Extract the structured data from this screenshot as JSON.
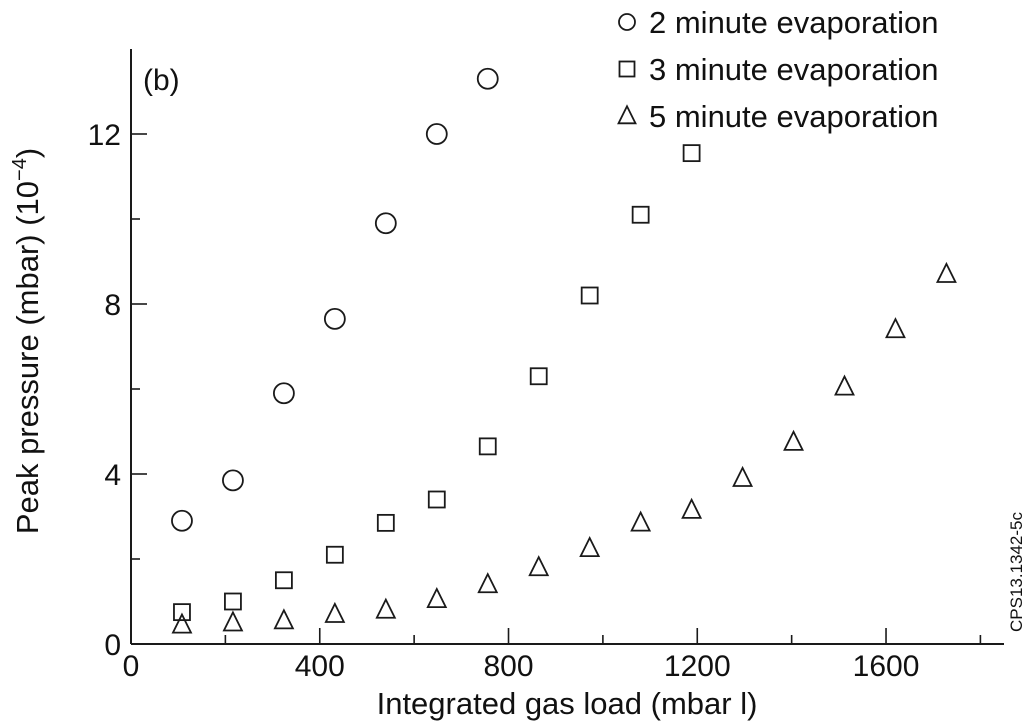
{
  "chart_data": {
    "type": "scatter",
    "panel_label": "(b)",
    "xlabel": "Integrated gas load (mbar l)",
    "ylabel_main": "Peak pressure (mbar) (10",
    "ylabel_sup": "−4",
    "ylabel_close": ")",
    "xlim": [
      0,
      1850
    ],
    "ylim": [
      0,
      14
    ],
    "xticks_major": [
      0,
      400,
      800,
      1200,
      1600
    ],
    "xticks_minor": [
      200,
      600,
      1000,
      1400,
      1800
    ],
    "yticks_major": [
      0,
      4,
      8,
      12
    ],
    "yticks_minor": [
      2,
      6,
      10
    ],
    "grid": false,
    "legend_position": "top-right",
    "figure_code": "CPS13.1342-5c",
    "series": [
      {
        "name": "2 minute evaporation",
        "marker": "circle",
        "x": [
          108,
          216,
          324,
          432,
          540,
          648,
          756
        ],
        "y": [
          2.9,
          3.85,
          5.9,
          7.65,
          9.9,
          12.0,
          13.3
        ]
      },
      {
        "name": "3 minute evaporation",
        "marker": "square",
        "x": [
          108,
          216,
          324,
          432,
          540,
          648,
          756,
          864,
          972,
          1080,
          1188
        ],
        "y": [
          0.75,
          1.0,
          1.5,
          2.1,
          2.85,
          3.4,
          4.65,
          6.3,
          8.2,
          10.1,
          11.55
        ]
      },
      {
        "name": "5 minute evaporation",
        "marker": "triangle",
        "x": [
          108,
          216,
          324,
          432,
          540,
          648,
          756,
          864,
          972,
          1080,
          1188,
          1296,
          1404,
          1512,
          1620,
          1728
        ],
        "y": [
          0.45,
          0.5,
          0.55,
          0.7,
          0.8,
          1.05,
          1.4,
          1.8,
          2.25,
          2.85,
          3.15,
          3.9,
          4.75,
          6.05,
          7.4,
          8.7
        ]
      }
    ]
  }
}
